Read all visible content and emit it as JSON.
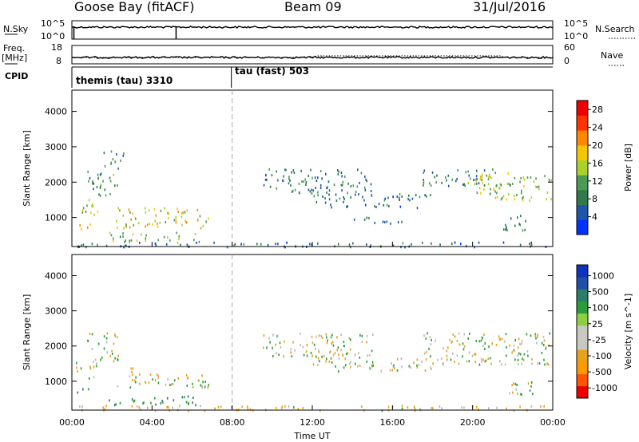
{
  "header": {
    "station": "Goose Bay (fitACF)",
    "beam": "Beam 09",
    "date": "31/Jul/2016"
  },
  "top_panels": {
    "nsky_label": "N.Sky",
    "nsky_ticks": [
      "10^5",
      "10^0"
    ],
    "nsearch_label": "N.Search",
    "nsearch_ticks": [
      "10^5",
      "10^0"
    ],
    "freq_label": "Freq.",
    "freq_unit": "[MHz]",
    "freq_ticks": [
      "18",
      "8"
    ],
    "nave_label": "Nave",
    "nave_ticks": [
      "60",
      "0"
    ],
    "cpid_label": "CPID",
    "cpid_segments": [
      {
        "name": "themis (tau) 3310",
        "start_hour": 0.0
      },
      {
        "name": "tau (fast) 503",
        "start_hour": 8.0
      }
    ]
  },
  "xaxis": {
    "label": "Time UT",
    "ticks": [
      "00:00",
      "04:00",
      "08:00",
      "12:00",
      "16:00",
      "20:00",
      "00:00"
    ]
  },
  "colors": {
    "power": [
      "#0033ff",
      "#1e57aa",
      "#2f7a48",
      "#4c9b55",
      "#aad12a",
      "#f5c500",
      "#ff8800",
      "#ff3300",
      "#ee0000"
    ],
    "velocity": [
      "#ee0000",
      "#ff5500",
      "#ff9900",
      "#e6a21a",
      "#c8c8c0",
      "#c8c8c0",
      "#8ccf40",
      "#2a9d3a",
      "#2b7d68",
      "#1f4fa8",
      "#1133bb"
    ],
    "ground_scatter": "#b9b9b0"
  },
  "chart_data": [
    {
      "type": "heatmap",
      "title": "Power",
      "xlabel": "Time UT",
      "ylabel": "Slant Range [km]",
      "xlim_hours": [
        0,
        24
      ],
      "ylim": [
        180,
        4600
      ],
      "yticks": [
        1000,
        2000,
        3000,
        4000
      ],
      "colorbar": {
        "label": "Power [dB]",
        "ticks": [
          4,
          8,
          12,
          16,
          20,
          24,
          28
        ],
        "range": [
          0,
          30
        ]
      },
      "regions": [
        {
          "t": [
            0.2,
            1.3
          ],
          "r": [
            1100,
            1600
          ],
          "value": 14
        },
        {
          "t": [
            0.7,
            2.3
          ],
          "r": [
            1600,
            2400
          ],
          "value": 10
        },
        {
          "t": [
            1.5,
            2.6
          ],
          "r": [
            2400,
            2900
          ],
          "value": 8
        },
        {
          "t": [
            2.2,
            6.8
          ],
          "r": [
            700,
            1300
          ],
          "value": 17
        },
        {
          "t": [
            0.2,
            1.0
          ],
          "r": [
            650,
            850
          ],
          "value": 22
        },
        {
          "t": [
            1.8,
            6.5
          ],
          "r": [
            320,
            600
          ],
          "value": 13
        },
        {
          "t": [
            9.5,
            15.0
          ],
          "r": [
            1700,
            2400
          ],
          "value": 8
        },
        {
          "t": [
            12.0,
            18.0
          ],
          "r": [
            1300,
            1700
          ],
          "value": 7
        },
        {
          "t": [
            14.0,
            16.5
          ],
          "r": [
            850,
            1050
          ],
          "value": 6
        },
        {
          "t": [
            17.5,
            21.0
          ],
          "r": [
            1900,
            2400
          ],
          "value": 9
        },
        {
          "t": [
            19.5,
            23.9
          ],
          "r": [
            1500,
            2300
          ],
          "value": 14
        },
        {
          "t": [
            21.5,
            23.0
          ],
          "r": [
            650,
            1100
          ],
          "value": 9
        },
        {
          "t": [
            0.0,
            24.0
          ],
          "r": [
            190,
            330
          ],
          "value": 6
        }
      ]
    },
    {
      "type": "heatmap",
      "title": "Velocity",
      "xlabel": "Time UT",
      "ylabel": "Slant Range [km]",
      "xlim_hours": [
        0,
        24
      ],
      "ylim": [
        180,
        4600
      ],
      "yticks": [
        1000,
        2000,
        3000,
        4000
      ],
      "colorbar": {
        "label": "Velocity [m s^-1]",
        "ticks": [
          1000,
          500,
          100,
          25,
          -25,
          -100,
          -500,
          -1000
        ],
        "range": [
          -1200,
          1200
        ]
      },
      "regions": [
        {
          "t": [
            0.2,
            1.3
          ],
          "r": [
            1100,
            1600
          ],
          "value": 0
        },
        {
          "t": [
            0.7,
            2.3
          ],
          "r": [
            1600,
            2400
          ],
          "value": 0
        },
        {
          "t": [
            2.2,
            6.8
          ],
          "r": [
            850,
            1250
          ],
          "value": 0
        },
        {
          "t": [
            2.6,
            3.4
          ],
          "r": [
            1050,
            1400
          ],
          "value": -180
        },
        {
          "t": [
            0.2,
            0.9
          ],
          "r": [
            650,
            850
          ],
          "value": 150
        },
        {
          "t": [
            1.8,
            6.5
          ],
          "r": [
            350,
            600
          ],
          "value": 120
        },
        {
          "t": [
            9.5,
            15.0
          ],
          "r": [
            1700,
            2400
          ],
          "value": 0
        },
        {
          "t": [
            12.0,
            18.0
          ],
          "r": [
            1300,
            1700
          ],
          "value": 0
        },
        {
          "t": [
            17.5,
            23.9
          ],
          "r": [
            1500,
            2400
          ],
          "value": 0
        },
        {
          "t": [
            21.5,
            23.0
          ],
          "r": [
            650,
            1100
          ],
          "value": 0
        },
        {
          "t": [
            0.0,
            24.0
          ],
          "r": [
            190,
            330
          ],
          "value": -60
        }
      ]
    }
  ]
}
